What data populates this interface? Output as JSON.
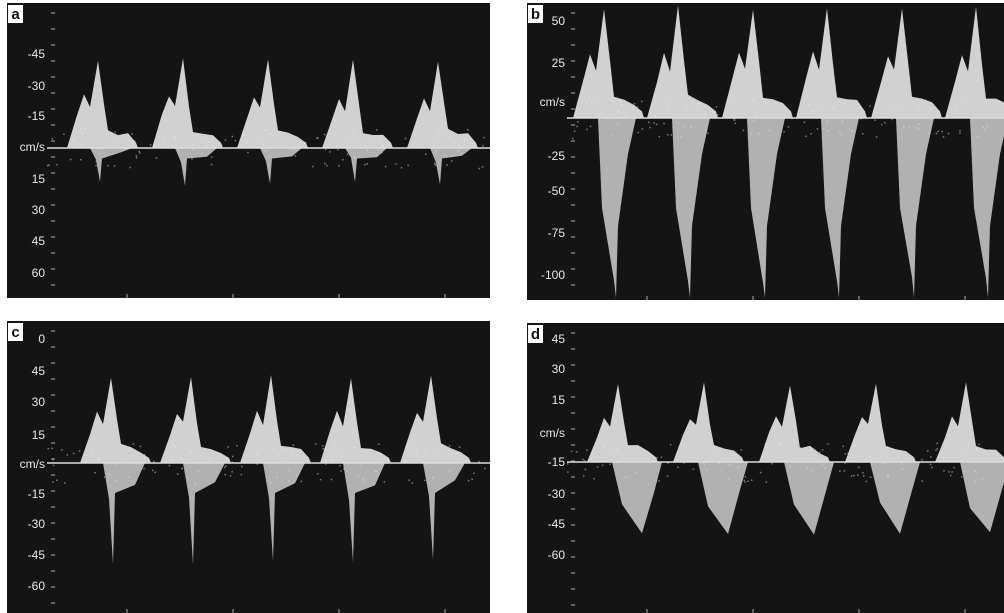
{
  "panels": [
    {
      "letter": "a",
      "labels": [
        "-45",
        "-30",
        "-15",
        "cm/s",
        "15",
        "30",
        "45",
        "60"
      ]
    },
    {
      "letter": "b",
      "labels": [
        "50",
        "25",
        "cm/s",
        "-25",
        "-50",
        "-75",
        "-100"
      ]
    },
    {
      "letter": "c",
      "labels": [
        "0",
        "45",
        "30",
        "15",
        "cm/s",
        "-15",
        "-30",
        "-45",
        "-60"
      ]
    },
    {
      "letter": "d",
      "labels": [
        "45",
        "30",
        "15",
        "cm/s",
        "-15",
        "-30",
        "-45",
        "-60"
      ]
    }
  ]
}
